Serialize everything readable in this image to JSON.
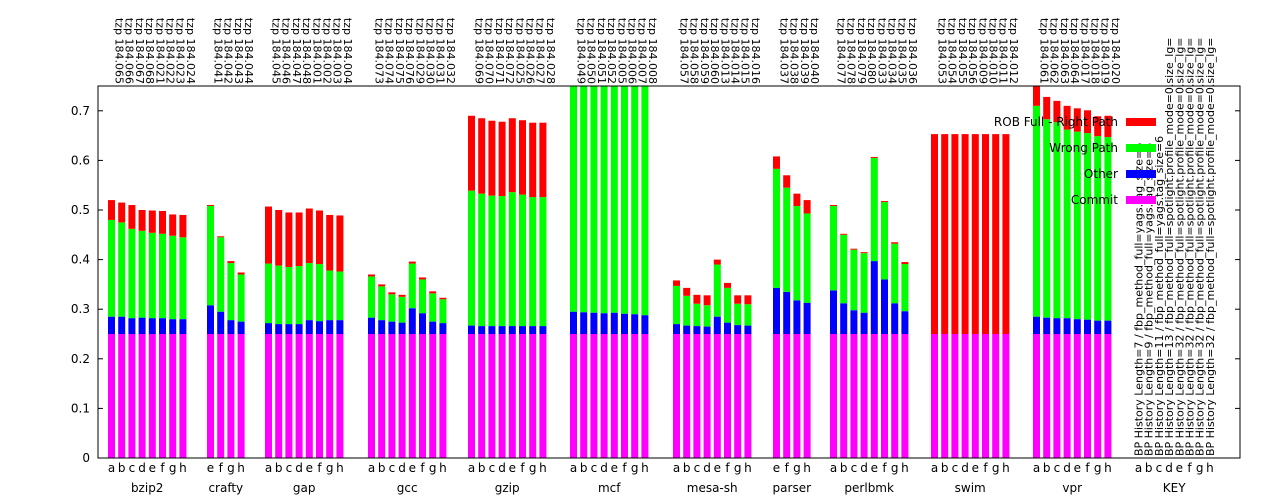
{
  "chart_data": {
    "type": "bar",
    "stacked": true,
    "ylim": [
      0,
      0.75
    ],
    "yticks": [
      0,
      0.1,
      0.2,
      0.3,
      0.4,
      0.5,
      0.6,
      0.7
    ],
    "ytick_labels": [
      "0",
      "0.1",
      "0.2",
      "0.3",
      "0.4",
      "0.5",
      "0.6",
      "0.7"
    ],
    "grid": false,
    "legend_position": "right",
    "series": [
      {
        "name": "Commit",
        "color": "#ff00ff"
      },
      {
        "name": "Other",
        "color": "#0000ff"
      },
      {
        "name": "Wrong Path",
        "color": "#00ff00"
      },
      {
        "name": "ROB Full - Right Path",
        "color": "#ff0000"
      }
    ],
    "groups": [
      {
        "name": "bzip2",
        "letters": [
          "a",
          "b",
          "c",
          "d",
          "e",
          "f",
          "g",
          "h"
        ],
        "top_labels": [
          "tzp 184.065",
          "tzp 184.066",
          "tzp 184.067",
          "tzp 184.068",
          "tzp 184.021",
          "tzp 184.022",
          "tzp 184.023",
          "tzp 184.024"
        ],
        "stacks": [
          [
            0.25,
            0.035,
            0.195,
            0.04
          ],
          [
            0.25,
            0.035,
            0.19,
            0.04
          ],
          [
            0.25,
            0.032,
            0.18,
            0.048
          ],
          [
            0.25,
            0.033,
            0.175,
            0.042
          ],
          [
            0.25,
            0.032,
            0.172,
            0.045
          ],
          [
            0.25,
            0.032,
            0.17,
            0.046
          ],
          [
            0.25,
            0.03,
            0.168,
            0.043
          ],
          [
            0.25,
            0.03,
            0.165,
            0.045
          ]
        ]
      },
      {
        "name": "crafty",
        "letters": [
          "e",
          "f",
          "g",
          "h"
        ],
        "top_labels": [
          "tzp 184.041",
          "tzp 184.042",
          "tzp 184.043",
          "tzp 184.044"
        ],
        "stacks": [
          [
            0.25,
            0.058,
            0.2,
            0.002
          ],
          [
            0.25,
            0.045,
            0.15,
            0.002
          ],
          [
            0.25,
            0.028,
            0.115,
            0.004
          ],
          [
            0.25,
            0.025,
            0.095,
            0.004
          ]
        ]
      },
      {
        "name": "gap",
        "letters": [
          "a",
          "b",
          "c",
          "d",
          "e",
          "f",
          "g",
          "h"
        ],
        "top_labels": [
          "tzp 184.045",
          "tzp 184.046",
          "tzp 184.047",
          "tzp 184.048",
          "tzp 184.001",
          "tzp 184.002",
          "tzp 184.003",
          "tzp 184.004"
        ],
        "stacks": [
          [
            0.25,
            0.022,
            0.12,
            0.115
          ],
          [
            0.25,
            0.02,
            0.118,
            0.112
          ],
          [
            0.25,
            0.02,
            0.115,
            0.11
          ],
          [
            0.25,
            0.02,
            0.117,
            0.108
          ],
          [
            0.25,
            0.028,
            0.115,
            0.11
          ],
          [
            0.25,
            0.026,
            0.115,
            0.108
          ],
          [
            0.25,
            0.028,
            0.1,
            0.112
          ],
          [
            0.25,
            0.028,
            0.098,
            0.113
          ]
        ]
      },
      {
        "name": "gcc",
        "letters": [
          "a",
          "b",
          "c",
          "d",
          "e",
          "f",
          "g",
          "h"
        ],
        "top_labels": [
          "tzp 184.073",
          "tzp 184.074",
          "tzp 184.075",
          "tzp 184.076",
          "tzp 184.029",
          "tzp 184.030",
          "tzp 184.031",
          "tzp 184.032"
        ],
        "stacks": [
          [
            0.25,
            0.033,
            0.083,
            0.004
          ],
          [
            0.25,
            0.028,
            0.068,
            0.004
          ],
          [
            0.25,
            0.025,
            0.055,
            0.004
          ],
          [
            0.25,
            0.023,
            0.052,
            0.004
          ],
          [
            0.25,
            0.052,
            0.09,
            0.004
          ],
          [
            0.25,
            0.042,
            0.068,
            0.004
          ],
          [
            0.25,
            0.025,
            0.057,
            0.004
          ],
          [
            0.25,
            0.022,
            0.048,
            0.003
          ]
        ]
      },
      {
        "name": "gzip",
        "letters": [
          "a",
          "b",
          "c",
          "d",
          "e",
          "f",
          "g",
          "h"
        ],
        "top_labels": [
          "tzp 184.069",
          "tzp 184.070",
          "tzp 184.071",
          "tzp 184.072",
          "tzp 184.025",
          "tzp 184.026",
          "tzp 184.027",
          "tzp 184.028"
        ],
        "stacks": [
          [
            0.25,
            0.017,
            0.272,
            0.151
          ],
          [
            0.25,
            0.016,
            0.267,
            0.152
          ],
          [
            0.25,
            0.016,
            0.263,
            0.151
          ],
          [
            0.25,
            0.016,
            0.262,
            0.15
          ],
          [
            0.25,
            0.016,
            0.27,
            0.149
          ],
          [
            0.25,
            0.016,
            0.265,
            0.15
          ],
          [
            0.25,
            0.016,
            0.26,
            0.15
          ],
          [
            0.25,
            0.016,
            0.26,
            0.15
          ]
        ]
      },
      {
        "name": "mcf",
        "letters": [
          "a",
          "b",
          "c",
          "d",
          "e",
          "f",
          "g",
          "h"
        ],
        "top_labels": [
          "tzp 184.049",
          "tzp 184.050",
          "tzp 184.051",
          "tzp 184.052",
          "tzp 184.005",
          "tzp 184.006",
          "tzp 184.007",
          "tzp 184.008"
        ],
        "stacks": [
          [
            0.25,
            0.045,
            0.455,
            0.0
          ],
          [
            0.25,
            0.044,
            0.456,
            0.0
          ],
          [
            0.25,
            0.043,
            0.457,
            0.0
          ],
          [
            0.25,
            0.042,
            0.458,
            0.0
          ],
          [
            0.25,
            0.043,
            0.457,
            0.0
          ],
          [
            0.25,
            0.041,
            0.459,
            0.0
          ],
          [
            0.25,
            0.04,
            0.46,
            0.0
          ],
          [
            0.25,
            0.038,
            0.462,
            0.0
          ]
        ]
      },
      {
        "name": "mesa-sh",
        "letters": [
          "a",
          "b",
          "c",
          "d",
          "e",
          "f",
          "g",
          "h"
        ],
        "top_labels": [
          "tzp 184.057",
          "tzp 184.058",
          "tzp 184.059",
          "tzp 184.060",
          "tzp 184.013",
          "tzp 184.014",
          "tzp 184.015",
          "tzp 184.016"
        ],
        "stacks": [
          [
            0.25,
            0.02,
            0.077,
            0.011
          ],
          [
            0.25,
            0.017,
            0.06,
            0.016
          ],
          [
            0.25,
            0.016,
            0.045,
            0.018
          ],
          [
            0.25,
            0.015,
            0.043,
            0.02
          ],
          [
            0.25,
            0.035,
            0.105,
            0.01
          ],
          [
            0.25,
            0.023,
            0.07,
            0.01
          ],
          [
            0.25,
            0.018,
            0.043,
            0.017
          ],
          [
            0.25,
            0.017,
            0.043,
            0.018
          ]
        ]
      },
      {
        "name": "parser",
        "letters": [
          "e",
          "f",
          "g",
          "h"
        ],
        "top_labels": [
          "tzp 184.037",
          "tzp 184.038",
          "tzp 184.039",
          "tzp 184.040"
        ],
        "stacks": [
          [
            0.25,
            0.093,
            0.24,
            0.025
          ],
          [
            0.25,
            0.085,
            0.21,
            0.025
          ],
          [
            0.25,
            0.068,
            0.19,
            0.025
          ],
          [
            0.25,
            0.063,
            0.18,
            0.027
          ]
        ]
      },
      {
        "name": "perlbmk",
        "letters": [
          "a",
          "b",
          "c",
          "d",
          "e",
          "f",
          "g",
          "h"
        ],
        "top_labels": [
          "tzp 184.077",
          "tzp 184.078",
          "tzp 184.079",
          "tzp 184.080",
          "tzp 184.033",
          "tzp 184.034",
          "tzp 184.035",
          "tzp 184.036"
        ],
        "stacks": [
          [
            0.25,
            0.088,
            0.17,
            0.002
          ],
          [
            0.25,
            0.062,
            0.138,
            0.002
          ],
          [
            0.25,
            0.048,
            0.122,
            0.002
          ],
          [
            0.25,
            0.043,
            0.12,
            0.002
          ],
          [
            0.25,
            0.147,
            0.208,
            0.002
          ],
          [
            0.25,
            0.11,
            0.156,
            0.002
          ],
          [
            0.25,
            0.062,
            0.12,
            0.003
          ],
          [
            0.25,
            0.046,
            0.095,
            0.004
          ]
        ]
      },
      {
        "name": "swim",
        "letters": [
          "a",
          "b",
          "c",
          "d",
          "e",
          "f",
          "g",
          "h"
        ],
        "top_labels": [
          "tzp 184.053",
          "tzp 184.054",
          "tzp 184.055",
          "tzp 184.056",
          "tzp 184.009",
          "tzp 184.010",
          "tzp 184.011",
          "tzp 184.012"
        ],
        "stacks": [
          [
            0.25,
            0.0,
            0.0,
            0.403
          ],
          [
            0.25,
            0.0,
            0.0,
            0.403
          ],
          [
            0.25,
            0.0,
            0.0,
            0.403
          ],
          [
            0.25,
            0.0,
            0.0,
            0.403
          ],
          [
            0.25,
            0.0,
            0.0,
            0.403
          ],
          [
            0.25,
            0.0,
            0.0,
            0.403
          ],
          [
            0.25,
            0.0,
            0.0,
            0.403
          ],
          [
            0.25,
            0.0,
            0.0,
            0.403
          ]
        ]
      },
      {
        "name": "vpr",
        "letters": [
          "a",
          "b",
          "c",
          "d",
          "e",
          "f",
          "g",
          "h"
        ],
        "top_labels": [
          "tzp 184.061",
          "tzp 184.062",
          "tzp 184.063",
          "tzp 184.064",
          "tzp 184.017",
          "tzp 184.018",
          "tzp 184.019",
          "tzp 184.020"
        ],
        "stacks": [
          [
            0.25,
            0.035,
            0.425,
            0.04
          ],
          [
            0.25,
            0.033,
            0.4,
            0.045
          ],
          [
            0.25,
            0.032,
            0.395,
            0.043
          ],
          [
            0.25,
            0.032,
            0.38,
            0.048
          ],
          [
            0.25,
            0.03,
            0.378,
            0.047
          ],
          [
            0.25,
            0.029,
            0.376,
            0.046
          ],
          [
            0.25,
            0.027,
            0.372,
            0.04
          ],
          [
            0.25,
            0.027,
            0.37,
            0.043
          ]
        ]
      }
    ],
    "key_group": {
      "name": "KEY",
      "letters": [
        "a",
        "b",
        "c",
        "d",
        "e",
        "f",
        "g",
        "h"
      ],
      "labels": [
        "BP History Length=7 / fbp_method_full=yags.tag_size=6",
        "BP History Length=9 / fbp_method_full=yags.tag_size=6",
        "BP History Length=11 / fbp_method_full=yags.tag_size=6",
        "BP History Length=13 / fbp_method_full=spotlight.profile_mode=0.size_lg=",
        "BP History Length=32 / fbp_method_full=spotlight.profile_mode=0.size_lg=",
        "BP History Length=32 / fbp_method_full=spotlight.profile_mode=0.size_lg=",
        "BP History Length=32 / fbp_method_full=spotlight.profile_mode=0.size_lg=",
        "BP History Length=32 / fbp_method_full=spotlight.profile_mode=0.size_lg="
      ]
    }
  }
}
